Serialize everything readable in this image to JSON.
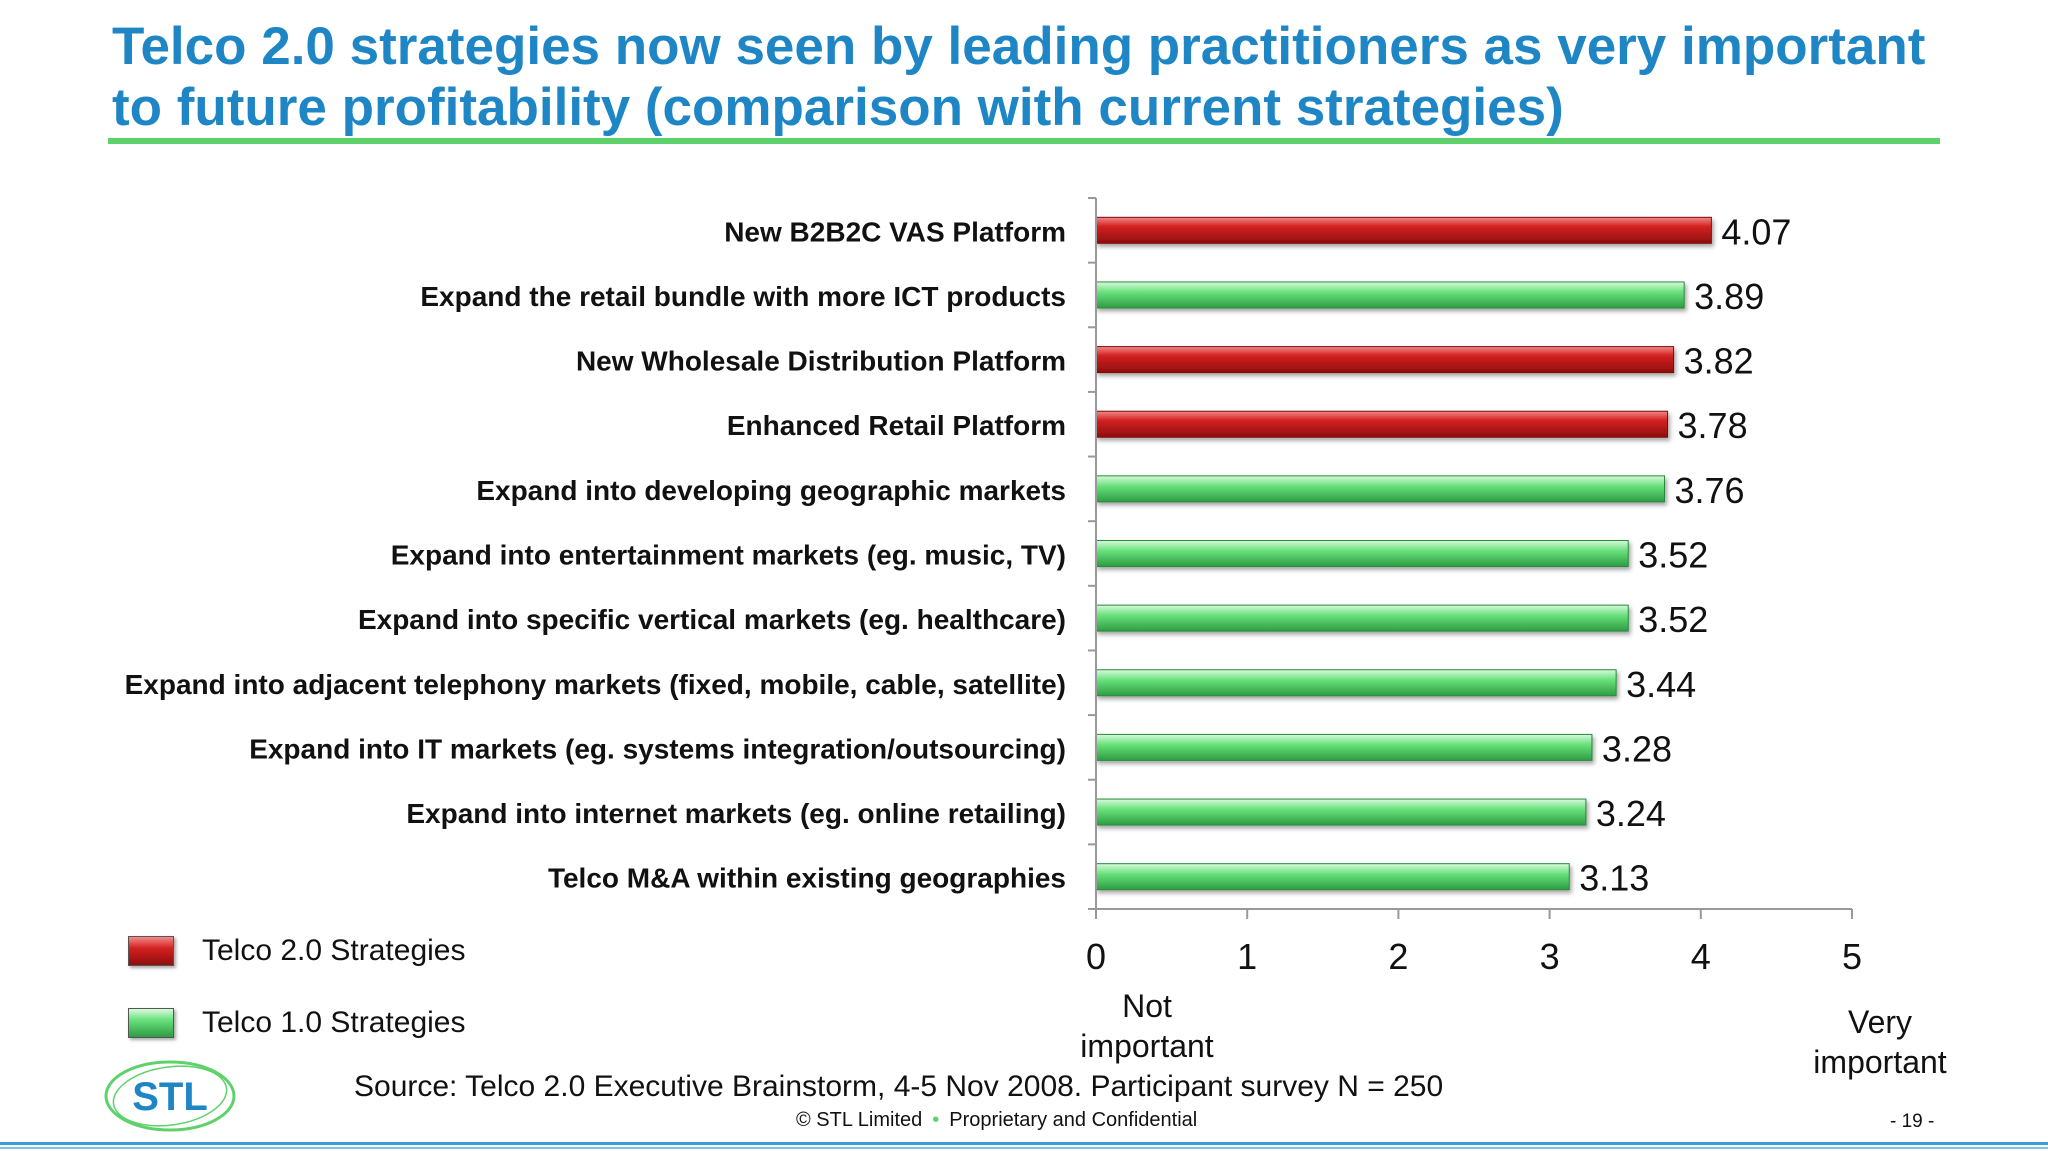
{
  "slide": {
    "title": "Telco 2.0 strategies now seen by leading practitioners as very important to future profitability (comparison with current strategies)",
    "source": "Source: Telco 2.0 Executive Brainstorm, 4-5 Nov 2008. Participant survey N = 250",
    "footer_copyright": "© STL Limited",
    "footer_confidential": "Proprietary and Confidential",
    "page_number": "- 19 -",
    "logo_text": "STL"
  },
  "colors": {
    "title": "#1f86c6",
    "rule": "#5fd16b",
    "telco2": "#d42121",
    "telco1": "#67e07a"
  },
  "chart_data": {
    "type": "bar",
    "orientation": "horizontal",
    "title": "",
    "xlabel": "",
    "ylabel": "",
    "xlim": [
      0,
      5
    ],
    "xticks": [
      "0",
      "1",
      "2",
      "3",
      "4",
      "5"
    ],
    "x_low_label": "Not important",
    "x_high_label": "Very important",
    "grid": false,
    "legend_position": "bottom-left",
    "legend": [
      {
        "name": "Telco 2.0 Strategies",
        "color": "#d42121"
      },
      {
        "name": "Telco 1.0 Strategies",
        "color": "#67e07a"
      }
    ],
    "categories": [
      "New B2B2C VAS Platform",
      "Expand the retail bundle with more ICT products",
      "New Wholesale Distribution Platform",
      "Enhanced Retail Platform",
      "Expand into developing geographic markets",
      "Expand into entertainment markets  (eg. music, TV)",
      "Expand into specific vertical  markets  (eg. healthcare)",
      "Expand into adjacent telephony markets  (fixed, mobile, cable, satellite)",
      "Expand into IT markets  (eg. systems  integration/outsourcing)",
      "Expand into internet markets  (eg. online retailing)",
      "Telco M&A within existing geographies"
    ],
    "values": [
      4.07,
      3.89,
      3.82,
      3.78,
      3.76,
      3.52,
      3.52,
      3.44,
      3.28,
      3.24,
      3.13
    ],
    "value_labels": [
      "4.07",
      "3.89",
      "3.82",
      "3.78",
      "3.76",
      "3.52",
      "3.52",
      "3.44",
      "3.28",
      "3.24",
      "3.13"
    ],
    "series": [
      "Telco 2.0 Strategies",
      "Telco 1.0 Strategies",
      "Telco 2.0 Strategies",
      "Telco 2.0 Strategies",
      "Telco 1.0 Strategies",
      "Telco 1.0 Strategies",
      "Telco 1.0 Strategies",
      "Telco 1.0 Strategies",
      "Telco 1.0 Strategies",
      "Telco 1.0 Strategies",
      "Telco 1.0 Strategies"
    ]
  }
}
